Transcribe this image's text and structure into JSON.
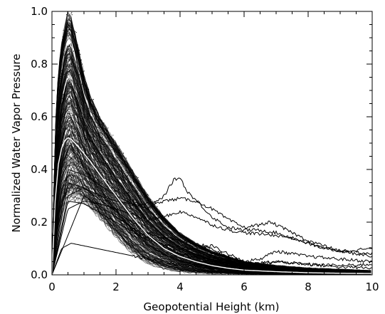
{
  "chart_data": {
    "type": "line",
    "xlabel": "Geopotential Height (km)",
    "ylabel": "Normalized Water Vapor Pressure",
    "xlim": [
      0,
      10
    ],
    "ylim": [
      0,
      1.0
    ],
    "x_ticks": [
      0,
      2,
      4,
      6,
      8,
      10
    ],
    "x_tick_labels": [
      "0",
      "2",
      "4",
      "6",
      "8",
      "10"
    ],
    "y_ticks": [
      0.0,
      0.2,
      0.4,
      0.6,
      0.8,
      1.0
    ],
    "y_tick_labels": [
      "0.0",
      "0.2",
      "0.4",
      "0.6",
      "0.8",
      "1.0"
    ],
    "grid": false,
    "colors": {
      "profiles": "#000000",
      "mean_profile": "#ffffff",
      "axes": "#000000",
      "background": "#ffffff"
    },
    "mean_profile": {
      "x": [
        0,
        0.1,
        0.2,
        0.3,
        0.4,
        0.5,
        0.6,
        0.8,
        1.0,
        1.2,
        1.5,
        2.0,
        2.5,
        3.0,
        3.5,
        4.0,
        4.5,
        5.0,
        5.5,
        6.0,
        7.0,
        8.0,
        9.0,
        10.0
      ],
      "y": [
        0.0,
        0.28,
        0.42,
        0.48,
        0.51,
        0.52,
        0.515,
        0.49,
        0.46,
        0.43,
        0.38,
        0.3,
        0.22,
        0.15,
        0.1,
        0.07,
        0.05,
        0.035,
        0.025,
        0.018,
        0.012,
        0.008,
        0.006,
        0.005
      ]
    },
    "envelope": {
      "x": [
        0,
        0.1,
        0.2,
        0.3,
        0.4,
        0.5,
        0.6,
        0.8,
        1.0,
        1.2,
        1.5,
        2.0,
        2.5,
        3.0,
        3.5,
        4.0,
        4.5,
        5.0,
        6.0,
        7.0,
        8.0,
        9.0,
        10.0
      ],
      "upper": [
        0.0,
        0.55,
        0.78,
        0.88,
        0.95,
        1.0,
        0.98,
        0.88,
        0.76,
        0.68,
        0.6,
        0.5,
        0.4,
        0.3,
        0.22,
        0.16,
        0.12,
        0.09,
        0.05,
        0.035,
        0.025,
        0.02,
        0.015
      ],
      "lower": [
        0.0,
        0.08,
        0.16,
        0.22,
        0.25,
        0.27,
        0.28,
        0.28,
        0.27,
        0.25,
        0.21,
        0.14,
        0.08,
        0.04,
        0.02,
        0.01,
        0.006,
        0.004,
        0.002,
        0.001,
        0.001,
        0.0,
        0.0
      ]
    },
    "outlier_profiles": [
      {
        "x": [
          0,
          0.5,
          1.0,
          1.5,
          2.0,
          2.5,
          3.0,
          3.5,
          3.8,
          4.0,
          4.2,
          4.6,
          5.0,
          5.5,
          6.0,
          6.5,
          7.0,
          7.5,
          8.0,
          8.5,
          9.0,
          9.5,
          10.0
        ],
        "y": [
          0.0,
          0.4,
          0.38,
          0.34,
          0.3,
          0.27,
          0.25,
          0.3,
          0.36,
          0.37,
          0.32,
          0.27,
          0.22,
          0.18,
          0.17,
          0.17,
          0.16,
          0.14,
          0.12,
          0.1,
          0.09,
          0.085,
          0.08
        ]
      },
      {
        "x": [
          0,
          0.5,
          1.0,
          1.5,
          2.0,
          2.5,
          3.0,
          3.5,
          4.0,
          4.5,
          5.0,
          5.5,
          6.0,
          6.5,
          6.8,
          7.0,
          7.5,
          8.0,
          8.5,
          9.0,
          9.5,
          10.0
        ],
        "y": [
          0.0,
          0.3,
          0.33,
          0.3,
          0.28,
          0.27,
          0.27,
          0.28,
          0.29,
          0.28,
          0.25,
          0.21,
          0.18,
          0.19,
          0.2,
          0.19,
          0.16,
          0.13,
          0.11,
          0.09,
          0.08,
          0.07
        ]
      },
      {
        "x": [
          0,
          0.5,
          1.0,
          1.5,
          2.0,
          2.5,
          3.0,
          3.5,
          4.0,
          4.5,
          5.0,
          5.5,
          6.0,
          6.5,
          7.0,
          7.5,
          8.0,
          8.5,
          9.0,
          9.5,
          10.0
        ],
        "y": [
          0.0,
          0.25,
          0.28,
          0.27,
          0.25,
          0.23,
          0.21,
          0.22,
          0.24,
          0.22,
          0.19,
          0.17,
          0.16,
          0.155,
          0.15,
          0.14,
          0.12,
          0.1,
          0.09,
          0.095,
          0.1
        ]
      },
      {
        "x": [
          0,
          0.5,
          1.0,
          2.0,
          3.0,
          3.5,
          4.0,
          4.5,
          5.0,
          5.5,
          6.0,
          6.5,
          7.0,
          7.5,
          8.0,
          9.0,
          10.0
        ],
        "y": [
          0.0,
          0.35,
          0.33,
          0.24,
          0.16,
          0.14,
          0.13,
          0.12,
          0.1,
          0.07,
          0.05,
          0.06,
          0.09,
          0.08,
          0.07,
          0.06,
          0.05
        ]
      },
      {
        "x": [
          0,
          0.5,
          1.0,
          2.0,
          3.0,
          4.0,
          4.5,
          5.0,
          5.5,
          6.0,
          6.5,
          7.0,
          8.0,
          9.0,
          10.0
        ],
        "y": [
          0.0,
          0.28,
          0.27,
          0.2,
          0.13,
          0.1,
          0.1,
          0.11,
          0.08,
          0.05,
          0.04,
          0.05,
          0.04,
          0.03,
          0.025
        ]
      },
      {
        "x": [
          0,
          0.3,
          0.6,
          1.0,
          2.0,
          3.0,
          4.0,
          5.0,
          6.0,
          7.0,
          8.0,
          9.0,
          10.0
        ],
        "y": [
          0.0,
          0.1,
          0.12,
          0.11,
          0.085,
          0.06,
          0.04,
          0.025,
          0.015,
          0.01,
          0.008,
          0.006,
          0.005
        ]
      },
      {
        "x": [
          0,
          1.0,
          2.0,
          3.0,
          4.0,
          5.0,
          6.0,
          7.0,
          8.0,
          9.0,
          10.0
        ],
        "y": [
          0.0,
          0.3,
          0.22,
          0.14,
          0.08,
          0.05,
          0.04,
          0.05,
          0.04,
          0.035,
          0.04
        ]
      }
    ]
  }
}
